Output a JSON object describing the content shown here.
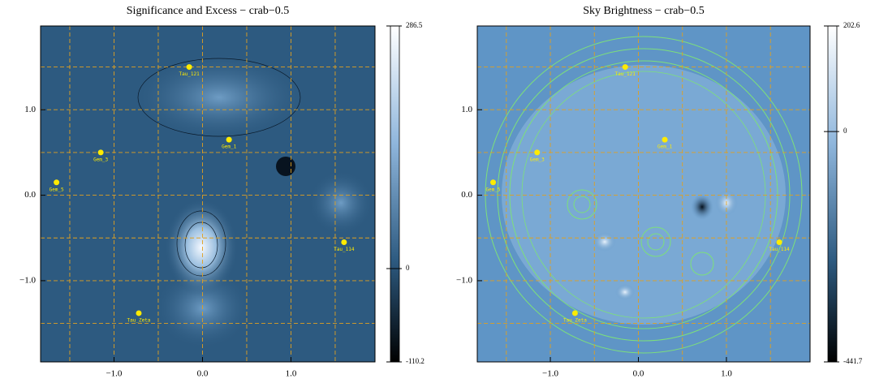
{
  "chart_data": [
    {
      "type": "heatmap",
      "title": "Significance and Excess − crab−0.5",
      "xlim": [
        -1.83,
        1.95
      ],
      "ylim": [
        -1.95,
        1.98
      ],
      "xticks": [
        {
          "value": -1,
          "label": "−1.0"
        },
        {
          "value": 0,
          "label": "0.0"
        },
        {
          "value": 1,
          "label": "1.0"
        }
      ],
      "yticks": [
        {
          "value": -1,
          "label": "−1.0"
        },
        {
          "value": 0,
          "label": "0.0"
        },
        {
          "value": 1,
          "label": "1.0"
        }
      ],
      "xgrid": [
        -1.5,
        -1,
        -0.5,
        0,
        0.5,
        1,
        1.5
      ],
      "ygrid": [
        -1.5,
        -1,
        -0.5,
        0,
        0.5,
        1,
        1.5
      ],
      "grid_color": "#e0a020",
      "cbar_lim": [
        -110.2,
        286.5
      ],
      "cbar_ticks": [
        286.5,
        0,
        -110.2
      ],
      "annotations": [
        {
          "text": "Tau_121",
          "x": -0.15,
          "y": 1.5
        },
        {
          "text": "Gem_1",
          "x": 0.3,
          "y": 0.65
        },
        {
          "text": "Gem_3",
          "x": -1.15,
          "y": 0.5
        },
        {
          "text": "Gem_5",
          "x": -1.65,
          "y": 0.15
        },
        {
          "text": "Tau_114",
          "x": 1.6,
          "y": -0.55
        },
        {
          "text": "Tau_Zeta",
          "x": -0.72,
          "y": -1.38
        }
      ]
    },
    {
      "type": "heatmap",
      "title": "Sky Brightness − crab−0.5",
      "xlim": [
        -1.83,
        1.95
      ],
      "ylim": [
        -1.95,
        1.98
      ],
      "xticks": [
        {
          "value": -1,
          "label": "−1.0"
        },
        {
          "value": 0,
          "label": "0.0"
        },
        {
          "value": 1,
          "label": "1.0"
        }
      ],
      "yticks": [
        {
          "value": -1,
          "label": "−1.0"
        },
        {
          "value": 0,
          "label": "0.0"
        },
        {
          "value": 1,
          "label": "1.0"
        }
      ],
      "xgrid": [
        -1.5,
        -1,
        -0.5,
        0,
        0.5,
        1,
        1.5
      ],
      "ygrid": [
        -1.5,
        -1,
        -0.5,
        0,
        0.5,
        1,
        1.5
      ],
      "grid_color": "#e0a020",
      "cbar_lim": [
        -441.7,
        202.6
      ],
      "cbar_ticks": [
        202.6,
        0,
        -441.7
      ],
      "annotations": [
        {
          "text": "Tau_121",
          "x": -0.15,
          "y": 1.5
        },
        {
          "text": "Gem_1",
          "x": 0.3,
          "y": 0.65
        },
        {
          "text": "Gem_3",
          "x": -1.15,
          "y": 0.5
        },
        {
          "text": "Gem_5",
          "x": -1.65,
          "y": 0.15
        },
        {
          "text": "Tau_114",
          "x": 1.6,
          "y": -0.55
        },
        {
          "text": "Tau_Zeta",
          "x": -0.72,
          "y": -1.38
        }
      ]
    }
  ]
}
